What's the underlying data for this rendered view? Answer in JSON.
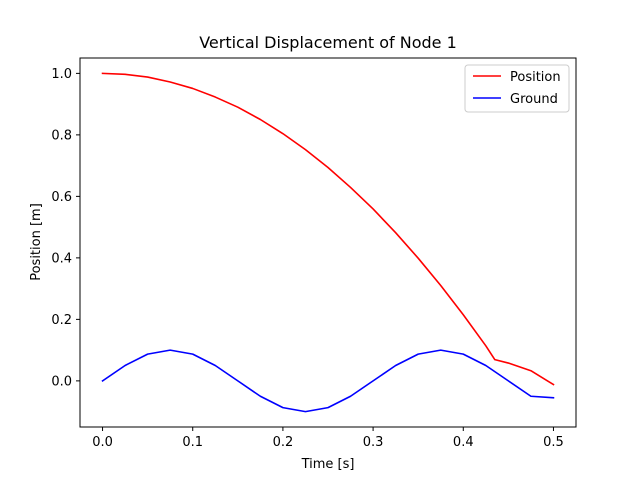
{
  "chart_data": {
    "type": "line",
    "title": "Vertical Displacement of Node 1",
    "xlabel": "Time [s]",
    "ylabel": "Position [m]",
    "xlim": [
      -0.025,
      0.525
    ],
    "ylim": [
      -0.15,
      1.05
    ],
    "xticks": [
      0.0,
      0.1,
      0.2,
      0.3,
      0.4,
      0.5
    ],
    "xtick_labels": [
      "0.0",
      "0.1",
      "0.2",
      "0.3",
      "0.4",
      "0.5"
    ],
    "yticks": [
      0.0,
      0.2,
      0.4,
      0.6,
      0.8,
      1.0
    ],
    "ytick_labels": [
      "0.0",
      "0.2",
      "0.4",
      "0.6",
      "0.8",
      "1.0"
    ],
    "grid": false,
    "legend_position": "top-right",
    "series": [
      {
        "name": "Position",
        "color": "#ff0000",
        "x": [
          0.0,
          0.025,
          0.05,
          0.075,
          0.1,
          0.125,
          0.15,
          0.175,
          0.2,
          0.225,
          0.25,
          0.275,
          0.3,
          0.325,
          0.35,
          0.375,
          0.4,
          0.425,
          0.435,
          0.45,
          0.475,
          0.5
        ],
        "y": [
          1.0,
          0.997,
          0.988,
          0.972,
          0.951,
          0.923,
          0.89,
          0.85,
          0.804,
          0.752,
          0.694,
          0.629,
          0.559,
          0.482,
          0.399,
          0.31,
          0.215,
          0.114,
          0.069,
          0.058,
          0.033,
          -0.012
        ]
      },
      {
        "name": "Ground",
        "color": "#0000ff",
        "x": [
          0.0,
          0.025,
          0.05,
          0.075,
          0.1,
          0.125,
          0.15,
          0.175,
          0.2,
          0.225,
          0.25,
          0.275,
          0.3,
          0.325,
          0.35,
          0.375,
          0.4,
          0.425,
          0.45,
          0.475,
          0.5
        ],
        "y": [
          0.0,
          0.05,
          0.087,
          0.1,
          0.087,
          0.05,
          0.0,
          -0.05,
          -0.087,
          -0.1,
          -0.087,
          -0.05,
          0.0,
          0.05,
          0.087,
          0.1,
          0.087,
          0.05,
          0.0,
          -0.05,
          -0.055
        ]
      }
    ]
  }
}
